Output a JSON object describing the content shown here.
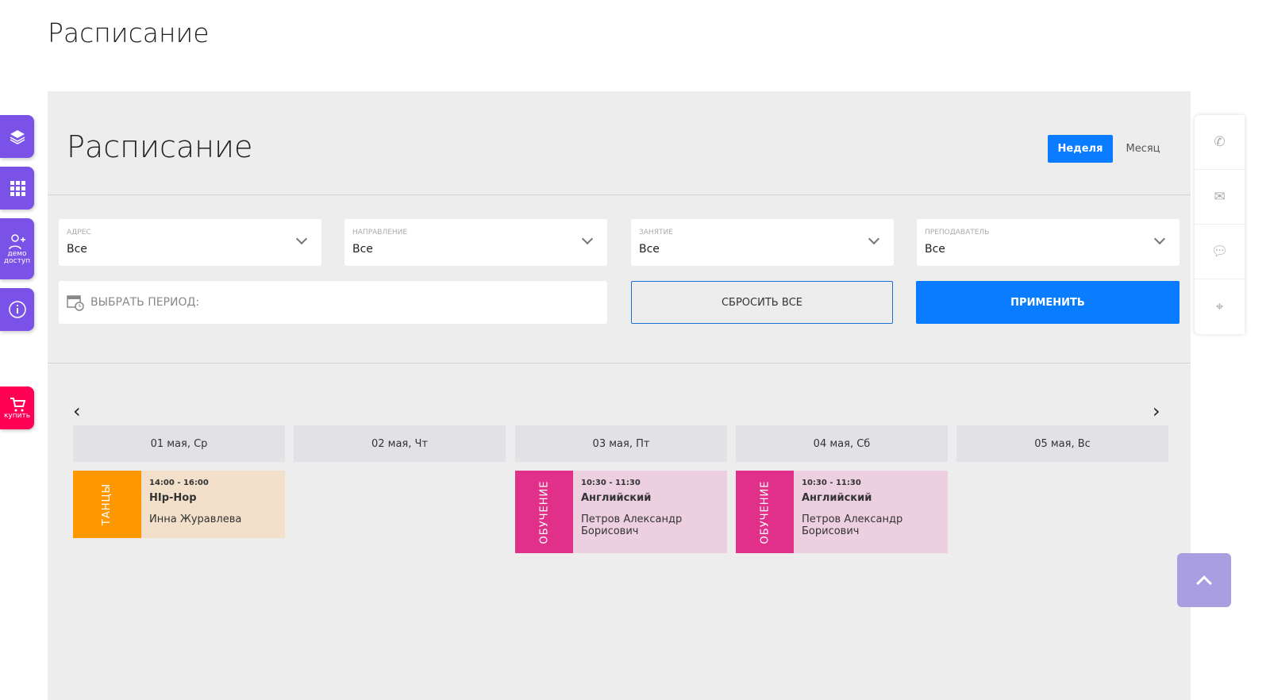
{
  "page_title": "Расписание",
  "panel": {
    "title": "Расписание",
    "view_week": "Неделя",
    "view_month": "Месяц"
  },
  "filters": [
    {
      "label": "АДРЕС",
      "value": "Все"
    },
    {
      "label": "НАПРАВЛЕНИЕ",
      "value": "Все"
    },
    {
      "label": "ЗАНЯТИЕ",
      "value": "Все"
    },
    {
      "label": "ПРЕПОДАВАТЕЛЬ",
      "value": "Все"
    }
  ],
  "period_placeholder": "ВЫБРАТЬ ПЕРИОД:",
  "reset_label": "СБРОСИТЬ ВСЕ",
  "apply_label": "ПРИМЕНИТЬ",
  "days": [
    "01 мая, Ср",
    "02 мая, Чт",
    "03 мая, Пт",
    "04 мая, Сб",
    "05 мая, Вс"
  ],
  "events": [
    {
      "category": "ТАНЦЫ",
      "time": "14:00 - 16:00",
      "name": "HIp-Hop",
      "teacher": "Инна Журавлева",
      "color": "#ff9800",
      "bg": "#f2e0cb"
    },
    {
      "category": "ОБУЧЕНИЕ",
      "time": "10:30 - 11:30",
      "name": "Английский",
      "teacher": "Петров Александр Борисович",
      "color": "#e0308a",
      "bg": "#edd0e0"
    },
    {
      "category": "ОБУЧЕНИЕ",
      "time": "10:30 - 11:30",
      "name": "Английский",
      "teacher": "Петров Александр Борисович",
      "color": "#e0308a",
      "bg": "#edd0e0"
    }
  ],
  "sidebar": {
    "demo": "демо доступ",
    "buy": "купить"
  },
  "colors": {
    "accent": "#0a7cff",
    "sidebar": "#7b52e8",
    "buy": "#ff0055"
  }
}
